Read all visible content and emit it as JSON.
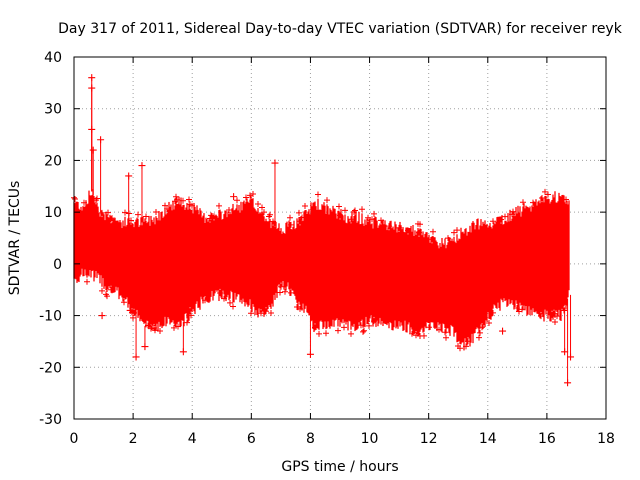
{
  "chart_data": {
    "type": "scatter",
    "title": "Day 317 of 2011, Sidereal Day-to-day VTEC variation (SDTVAR) for receiver reyk",
    "xlabel": "GPS time / hours",
    "ylabel": "SDTVAR / TECUs",
    "xlim": [
      0,
      18
    ],
    "ylim": [
      -30,
      40
    ],
    "xticks": [
      0,
      2,
      4,
      6,
      8,
      10,
      12,
      14,
      16,
      18
    ],
    "yticks": [
      -30,
      -20,
      -10,
      0,
      10,
      20,
      30,
      40
    ],
    "grid": true,
    "marker": "+",
    "series_color": "#ff0000",
    "envelope": {
      "x": [
        0.0,
        0.3,
        0.6,
        0.9,
        1.2,
        1.6,
        2.0,
        2.4,
        2.8,
        3.2,
        3.6,
        4.0,
        4.4,
        4.8,
        5.2,
        5.6,
        6.0,
        6.3,
        6.6,
        6.9,
        7.2,
        7.6,
        7.95,
        8.1,
        8.4,
        8.8,
        9.2,
        9.6,
        10.0,
        10.4,
        10.8,
        11.2,
        11.6,
        12.0,
        12.4,
        12.8,
        13.1,
        13.4,
        13.8,
        14.2,
        14.6,
        15.0,
        15.4,
        15.8,
        16.2,
        16.5,
        16.75
      ],
      "upper": [
        12,
        11,
        14,
        10,
        9,
        8,
        8,
        8,
        9,
        11,
        12,
        11,
        9,
        9,
        10,
        11,
        12,
        10,
        8,
        7,
        7,
        8,
        10,
        12,
        11,
        10,
        9,
        9,
        8,
        8,
        7,
        7,
        6,
        5,
        4,
        4,
        6,
        7,
        8,
        8,
        9,
        10,
        11,
        12,
        13,
        13,
        12
      ],
      "lower": [
        -3,
        -2,
        -2,
        -3,
        -5,
        -6,
        -9,
        -12,
        -12,
        -11,
        -12,
        -9,
        -7,
        -6,
        -6,
        -7,
        -8,
        -10,
        -9,
        -5,
        -4,
        -8,
        -9,
        -12,
        -12,
        -11,
        -12,
        -12,
        -11,
        -11,
        -12,
        -12,
        -13,
        -12,
        -12,
        -13,
        -16,
        -15,
        -12,
        -9,
        -7,
        -8,
        -9,
        -10,
        -10,
        -10,
        -6
      ]
    },
    "outliers": [
      {
        "x": 0.6,
        "y": 36
      },
      {
        "x": 0.6,
        "y": 34
      },
      {
        "x": 0.6,
        "y": 26
      },
      {
        "x": 0.65,
        "y": 22
      },
      {
        "x": 0.9,
        "y": 24
      },
      {
        "x": 0.95,
        "y": -10
      },
      {
        "x": 1.85,
        "y": 17
      },
      {
        "x": 1.9,
        "y": -9
      },
      {
        "x": 2.1,
        "y": -18
      },
      {
        "x": 2.3,
        "y": 19
      },
      {
        "x": 2.4,
        "y": -16
      },
      {
        "x": 3.7,
        "y": -17
      },
      {
        "x": 5.4,
        "y": 13
      },
      {
        "x": 6.8,
        "y": 19.5
      },
      {
        "x": 8.0,
        "y": -17.5
      },
      {
        "x": 14.5,
        "y": -13
      },
      {
        "x": 16.7,
        "y": -23
      },
      {
        "x": 16.6,
        "y": -17
      },
      {
        "x": 16.8,
        "y": -18
      }
    ]
  }
}
